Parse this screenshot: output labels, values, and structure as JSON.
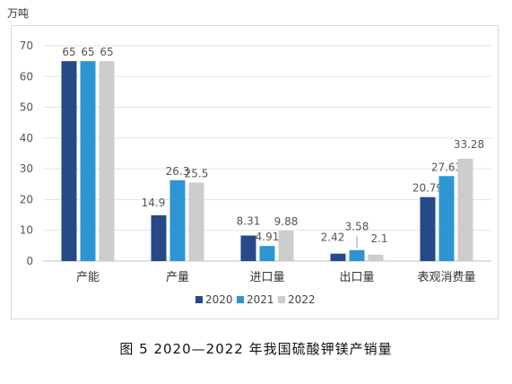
{
  "unit_label": "万吨",
  "caption": "图 5  2020—2022 年我国硫酸钾镁产销量",
  "chart_data": {
    "type": "bar",
    "title": "",
    "ylabel": "万吨",
    "ylim": [
      0,
      70
    ],
    "yticks": [
      0,
      10,
      20,
      30,
      40,
      50,
      60,
      70
    ],
    "grid": true,
    "legend_position": "bottom",
    "categories": [
      "产能",
      "产量",
      "进口量",
      "出口量",
      "表观消费量"
    ],
    "series": [
      {
        "name": "2020",
        "color": "#254a87",
        "values": [
          65,
          14.9,
          8.31,
          2.42,
          20.79
        ],
        "labels": [
          "65",
          "14.9",
          "8.31",
          "2.42",
          "20.79"
        ]
      },
      {
        "name": "2021",
        "color": "#2e95d3",
        "values": [
          65,
          26.3,
          4.91,
          3.58,
          27.63
        ],
        "labels": [
          "65",
          "26.3",
          "4.91",
          "3.58",
          "27.63"
        ]
      },
      {
        "name": "2022",
        "color": "#cccccc",
        "values": [
          65,
          25.5,
          9.88,
          2.1,
          33.28
        ],
        "labels": [
          "65",
          "25.5",
          "9.88",
          "2.1",
          "33.28"
        ]
      }
    ]
  }
}
